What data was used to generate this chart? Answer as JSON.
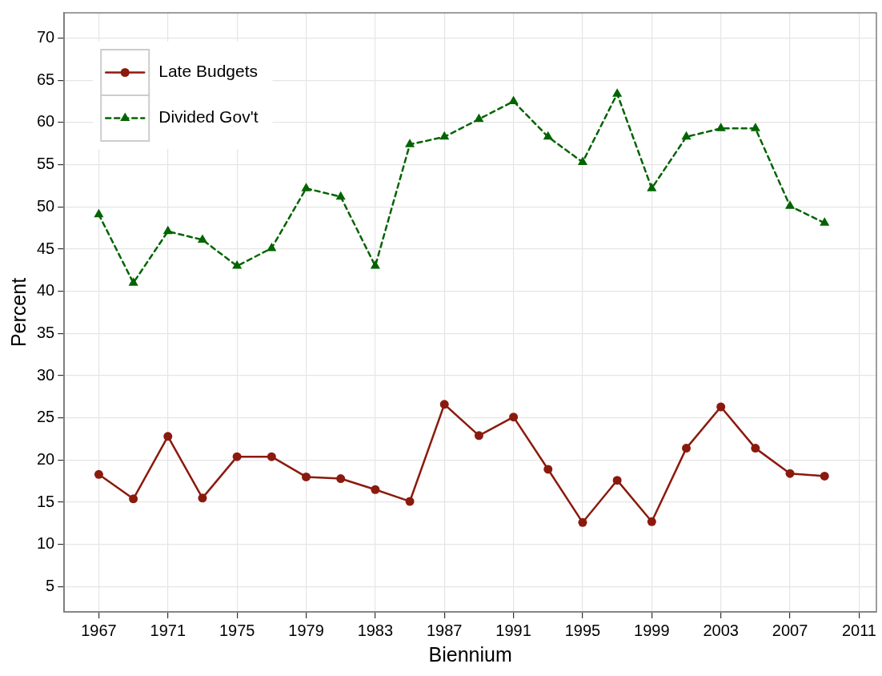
{
  "chart_data": {
    "type": "line",
    "xlabel": "Biennium",
    "ylabel": "Percent",
    "x": [
      1967,
      1969,
      1971,
      1973,
      1975,
      1977,
      1979,
      1981,
      1983,
      1985,
      1987,
      1989,
      1991,
      1993,
      1995,
      1997,
      1999,
      2001,
      2003,
      2005,
      2007,
      2009
    ],
    "series": [
      {
        "name": "Late Budgets",
        "color": "#8b1a0e",
        "marker": "circle",
        "line_style": "solid",
        "values": [
          18.3,
          15.4,
          22.8,
          15.5,
          20.4,
          20.4,
          18.0,
          17.8,
          16.5,
          15.1,
          26.6,
          22.9,
          25.1,
          18.9,
          12.6,
          17.6,
          12.7,
          21.4,
          26.3,
          21.4,
          18.4,
          18.1
        ]
      },
      {
        "name": "Divided Gov't",
        "color": "#006400",
        "marker": "triangle",
        "line_style": "dashed",
        "values": [
          49.1,
          41.0,
          47.1,
          46.1,
          43.0,
          45.1,
          52.2,
          51.2,
          43.0,
          57.4,
          58.3,
          60.4,
          62.5,
          58.3,
          55.3,
          63.4,
          52.2,
          58.3,
          59.3,
          59.3,
          50.1,
          48.1
        ]
      }
    ],
    "xlim": [
      1965,
      2012
    ],
    "xticks": [
      1967,
      1971,
      1975,
      1979,
      1983,
      1987,
      1991,
      1995,
      1999,
      2003,
      2007,
      2011
    ],
    "ylim": [
      2,
      73
    ],
    "yticks": [
      5,
      10,
      15,
      20,
      25,
      30,
      35,
      40,
      45,
      50,
      55,
      60,
      65,
      70
    ],
    "grid": true,
    "legend": "top left"
  }
}
